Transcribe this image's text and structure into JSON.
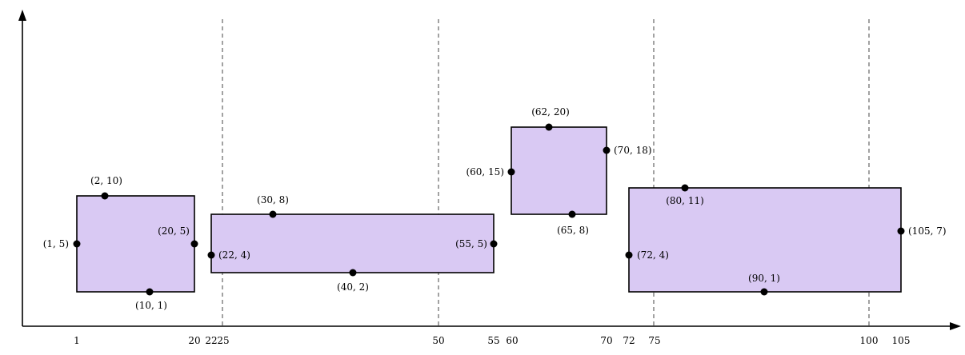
{
  "x_ticks": [
    {
      "id": "1",
      "label": "1"
    },
    {
      "id": "20",
      "label": "20"
    },
    {
      "id": "22",
      "label": "22"
    },
    {
      "id": "25",
      "label": "25"
    },
    {
      "id": "50",
      "label": "50"
    },
    {
      "id": "55",
      "label": "55"
    },
    {
      "id": "60",
      "label": "60"
    },
    {
      "id": "70",
      "label": "70"
    },
    {
      "id": "72",
      "label": "72"
    },
    {
      "id": "75",
      "label": "75"
    },
    {
      "id": "100",
      "label": "100"
    },
    {
      "id": "105",
      "label": "105"
    }
  ],
  "dashed_lines_at": [
    25,
    50,
    75,
    100
  ],
  "rectangles": [
    {
      "id": "r1",
      "points": [
        {
          "id": "p1_5",
          "label": "(1, 5)"
        },
        {
          "id": "p2_10",
          "label": "(2, 10)"
        },
        {
          "id": "p20_5",
          "label": "(20, 5)"
        },
        {
          "id": "p10_1",
          "label": "(10, 1)"
        }
      ]
    },
    {
      "id": "r2",
      "points": [
        {
          "id": "p22_4",
          "label": "(22, 4)"
        },
        {
          "id": "p30_8",
          "label": "(30, 8)"
        },
        {
          "id": "p55_5",
          "label": "(55, 5)"
        },
        {
          "id": "p40_2",
          "label": "(40, 2)"
        }
      ]
    },
    {
      "id": "r3",
      "points": [
        {
          "id": "p60_15",
          "label": "(60, 15)"
        },
        {
          "id": "p62_20",
          "label": "(62, 20)"
        },
        {
          "id": "p70_18",
          "label": "(70, 18)"
        },
        {
          "id": "p65_8",
          "label": "(65, 8)"
        }
      ]
    },
    {
      "id": "r4",
      "points": [
        {
          "id": "p72_4",
          "label": "(72, 4)"
        },
        {
          "id": "p80_11",
          "label": "(80, 11)"
        },
        {
          "id": "p105_7",
          "label": "(105, 7)"
        },
        {
          "id": "p90_1",
          "label": "(90, 1)"
        }
      ]
    }
  ]
}
